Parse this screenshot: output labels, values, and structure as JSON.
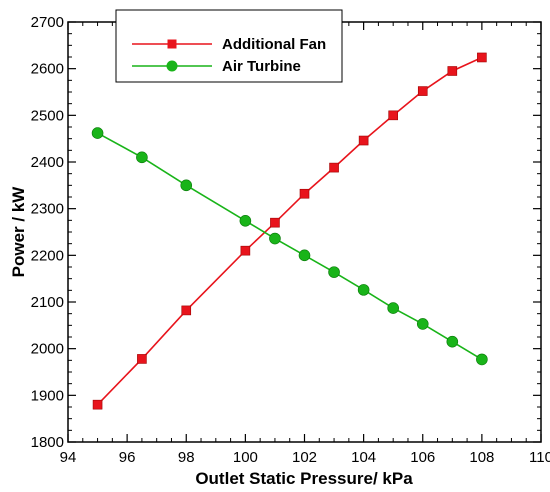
{
  "chart_data": {
    "type": "line",
    "title": "",
    "xlabel": "Outlet Static Pressure/ kPa",
    "ylabel": "Power / kW",
    "xlim": [
      94,
      110
    ],
    "ylim": [
      1800,
      2700
    ],
    "xticks": [
      94,
      96,
      98,
      100,
      102,
      104,
      106,
      108,
      110
    ],
    "yticks": [
      1800,
      1900,
      2000,
      2100,
      2200,
      2300,
      2400,
      2500,
      2600,
      2700
    ],
    "grid": false,
    "legend_position": "top-center",
    "series": [
      {
        "name": "Additional Fan",
        "color": "#e8141c",
        "marker": "square",
        "x": [
          95,
          96.5,
          98,
          100,
          101,
          102,
          103,
          104,
          105,
          106,
          107,
          108
        ],
        "y": [
          1880,
          1978,
          2082,
          2210,
          2270,
          2332,
          2388,
          2446,
          2500,
          2552,
          2595,
          2624
        ]
      },
      {
        "name": "Air Turbine",
        "color": "#19b419",
        "marker": "circle",
        "x": [
          95,
          96.5,
          98,
          100,
          101,
          102,
          103,
          104,
          105,
          106,
          107,
          108
        ],
        "y": [
          2462,
          2410,
          2350,
          2274,
          2236,
          2200,
          2164,
          2126,
          2087,
          2053,
          2015,
          1977
        ]
      }
    ]
  }
}
